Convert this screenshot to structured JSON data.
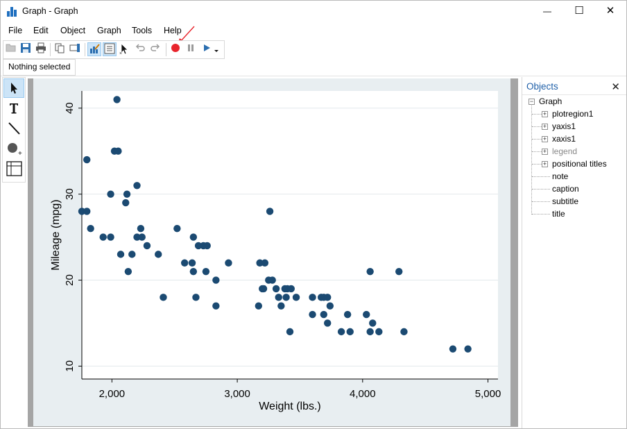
{
  "window": {
    "title": "Graph - Graph",
    "controls": {
      "minimize": "—",
      "maximize": "☐",
      "close": "✕"
    }
  },
  "menu": [
    "File",
    "Edit",
    "Object",
    "Graph",
    "Tools",
    "Help"
  ],
  "toolbar": {
    "buttons": [
      "open-icon",
      "save-icon",
      "print-icon",
      "copy-icon",
      "rename-icon",
      "graph-editor-icon",
      "object-browser-icon",
      "pointer-icon",
      "undo-icon",
      "redo-icon",
      "record-icon",
      "pause-icon",
      "play-icon",
      "dropdown-icon"
    ]
  },
  "status": {
    "selection": "Nothing selected"
  },
  "tools": [
    "pointer-tool",
    "text-tool",
    "line-tool",
    "marker-tool",
    "grid-editor-tool"
  ],
  "objects_panel": {
    "title": "Objects",
    "close": "✕",
    "root": "Graph",
    "items": [
      {
        "label": "plotregion1",
        "expandable": true,
        "disabled": false
      },
      {
        "label": "yaxis1",
        "expandable": true,
        "disabled": false
      },
      {
        "label": "xaxis1",
        "expandable": true,
        "disabled": false
      },
      {
        "label": "legend",
        "expandable": true,
        "disabled": true
      },
      {
        "label": "positional titles",
        "expandable": true,
        "disabled": false
      },
      {
        "label": "note",
        "expandable": false,
        "disabled": false
      },
      {
        "label": "caption",
        "expandable": false,
        "disabled": false
      },
      {
        "label": "subtitle",
        "expandable": false,
        "disabled": false
      },
      {
        "label": "title",
        "expandable": false,
        "disabled": false
      }
    ]
  },
  "colors": {
    "marker": "#1b4a72",
    "record": "#e8242c",
    "accent": "#1e5fa8",
    "plot_bg": "#ffffff",
    "graph_bg": "#e8eef1"
  },
  "chart_data": {
    "type": "scatter",
    "title": "",
    "xlabel": "Weight (lbs.)",
    "ylabel": "Mileage (mpg)",
    "xlim": [
      1760,
      5080
    ],
    "ylim": [
      8.5,
      42
    ],
    "xticks": [
      2000,
      3000,
      4000,
      5000
    ],
    "xtick_labels": [
      "2,000",
      "3,000",
      "4,000",
      "5,000"
    ],
    "yticks": [
      10,
      20,
      30,
      40
    ],
    "ytick_labels": [
      "10",
      "20",
      "30",
      "40"
    ],
    "grid": true,
    "legend": "none",
    "points": [
      {
        "x": 2040,
        "y": 41
      },
      {
        "x": 1800,
        "y": 34
      },
      {
        "x": 2020,
        "y": 35
      },
      {
        "x": 2050,
        "y": 35
      },
      {
        "x": 1990,
        "y": 30
      },
      {
        "x": 2200,
        "y": 31
      },
      {
        "x": 2120,
        "y": 30
      },
      {
        "x": 2110,
        "y": 29
      },
      {
        "x": 1760,
        "y": 28
      },
      {
        "x": 1800,
        "y": 28
      },
      {
        "x": 3260,
        "y": 28
      },
      {
        "x": 1830,
        "y": 26
      },
      {
        "x": 2230,
        "y": 26
      },
      {
        "x": 2520,
        "y": 26
      },
      {
        "x": 1930,
        "y": 25
      },
      {
        "x": 1990,
        "y": 25
      },
      {
        "x": 2200,
        "y": 25
      },
      {
        "x": 2240,
        "y": 25
      },
      {
        "x": 2650,
        "y": 25
      },
      {
        "x": 2280,
        "y": 24
      },
      {
        "x": 2690,
        "y": 24
      },
      {
        "x": 2730,
        "y": 24
      },
      {
        "x": 2760,
        "y": 24
      },
      {
        "x": 2070,
        "y": 23
      },
      {
        "x": 2160,
        "y": 23
      },
      {
        "x": 2370,
        "y": 23
      },
      {
        "x": 2580,
        "y": 22
      },
      {
        "x": 2640,
        "y": 22
      },
      {
        "x": 2930,
        "y": 22
      },
      {
        "x": 3180,
        "y": 22
      },
      {
        "x": 3220,
        "y": 22
      },
      {
        "x": 2130,
        "y": 21
      },
      {
        "x": 2650,
        "y": 21
      },
      {
        "x": 2750,
        "y": 21
      },
      {
        "x": 4060,
        "y": 21
      },
      {
        "x": 4290,
        "y": 21
      },
      {
        "x": 2830,
        "y": 20
      },
      {
        "x": 3250,
        "y": 20
      },
      {
        "x": 3280,
        "y": 20
      },
      {
        "x": 3200,
        "y": 19
      },
      {
        "x": 3210,
        "y": 19
      },
      {
        "x": 3310,
        "y": 19
      },
      {
        "x": 3380,
        "y": 19
      },
      {
        "x": 3400,
        "y": 19
      },
      {
        "x": 3430,
        "y": 19
      },
      {
        "x": 2410,
        "y": 18
      },
      {
        "x": 2670,
        "y": 18
      },
      {
        "x": 3330,
        "y": 18
      },
      {
        "x": 3390,
        "y": 18
      },
      {
        "x": 3470,
        "y": 18
      },
      {
        "x": 3600,
        "y": 18
      },
      {
        "x": 3670,
        "y": 18
      },
      {
        "x": 3690,
        "y": 18
      },
      {
        "x": 3720,
        "y": 18
      },
      {
        "x": 2830,
        "y": 17
      },
      {
        "x": 3170,
        "y": 17
      },
      {
        "x": 3350,
        "y": 17
      },
      {
        "x": 3740,
        "y": 17
      },
      {
        "x": 3600,
        "y": 16
      },
      {
        "x": 3690,
        "y": 16
      },
      {
        "x": 3880,
        "y": 16
      },
      {
        "x": 4030,
        "y": 16
      },
      {
        "x": 3720,
        "y": 15
      },
      {
        "x": 4080,
        "y": 15
      },
      {
        "x": 3420,
        "y": 14
      },
      {
        "x": 3830,
        "y": 14
      },
      {
        "x": 3900,
        "y": 14
      },
      {
        "x": 4060,
        "y": 14
      },
      {
        "x": 4130,
        "y": 14
      },
      {
        "x": 4330,
        "y": 14
      },
      {
        "x": 4720,
        "y": 12
      },
      {
        "x": 4840,
        "y": 12
      }
    ]
  }
}
